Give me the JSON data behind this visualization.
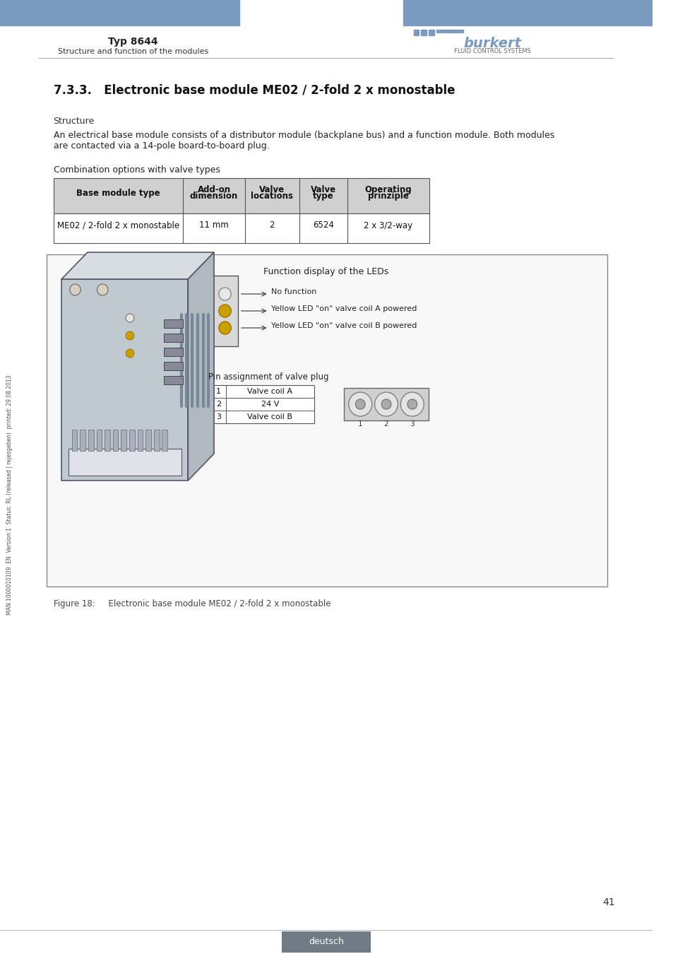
{
  "page_bg": "#ffffff",
  "header_bar_color": "#7a9bbf",
  "header_typ_text": "Typ 8644",
  "header_sub_text": "Structure and function of the modules",
  "burkert_text": "burkert",
  "burkert_sub": "FLUID CONTROL SYSTEMS",
  "section_title": "7.3.3.   Electronic base module ME02 / 2-fold 2 x monostable",
  "structure_label": "Structure",
  "body_text1": "An electrical base module consists of a distributor module (backplane bus) and a function module. Both modules",
  "body_text2": "are contacted via a 14-pole board-to-board plug.",
  "combo_label": "Combination options with valve types",
  "table_headers": [
    "Base module type",
    "Add-on\ndimension",
    "Valve\nlocations",
    "Valve\ntype",
    "Operating\nprinziple"
  ],
  "table_row": [
    "ME02 / 2-fold 2 x monostable",
    "11 mm",
    "2",
    "6524",
    "2 x 3/2-way"
  ],
  "table_header_bg": "#d0d0d0",
  "table_border": "#555555",
  "fig_label": "Function display of the LEDs",
  "led_labels": [
    "No function",
    "Yellow LED \"on\" valve coil A powered",
    "Yellow LED \"on\" valve coil B powered"
  ],
  "led_colors": [
    "#e0e0e0",
    "#c8a000",
    "#c8a000"
  ],
  "pin_label": "Pin assignment of valve plug",
  "pin_rows": [
    [
      "1",
      "Valve coil A"
    ],
    [
      "2",
      "24 V"
    ],
    [
      "3",
      "Valve coil B"
    ]
  ],
  "figure_caption": "Figure 18:     Electronic base module ME02 / 2-fold 2 x monostable",
  "footer_text": "deutsch",
  "footer_bg": "#6e7b85",
  "page_number": "41",
  "side_text": "MAN 1000010109  EN  Version:1  Status: RL (released | rejesgeben)  printed: 29.08.2013",
  "sep_line_color": "#aaaaaa",
  "text_color": "#000000"
}
